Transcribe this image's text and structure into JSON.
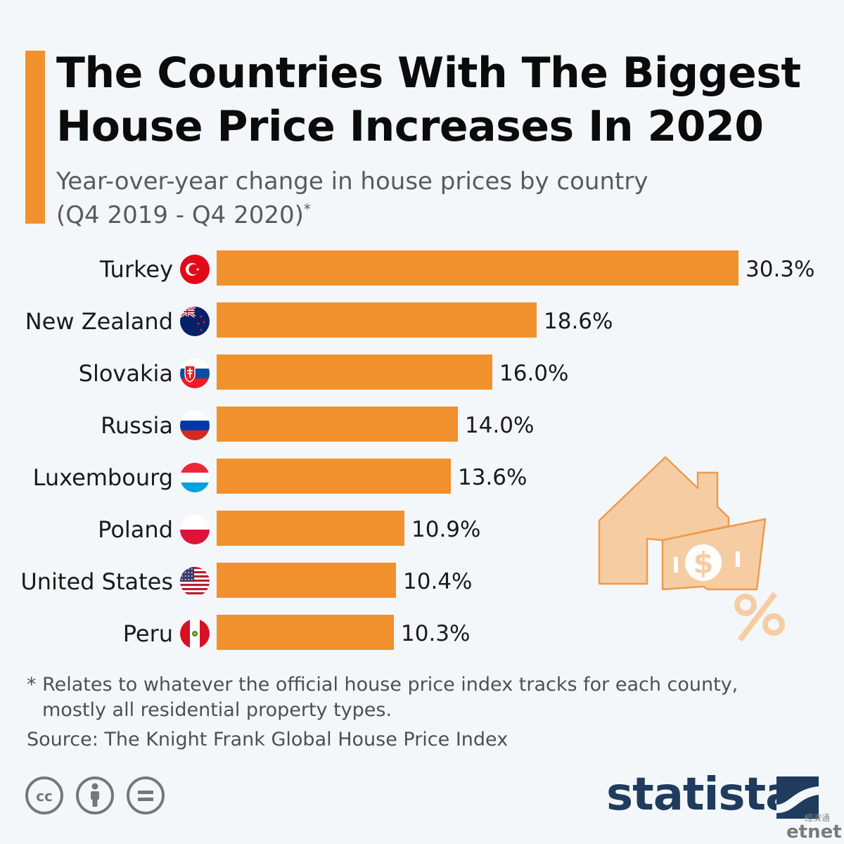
{
  "header": {
    "title_line1": "The Countries With The Biggest",
    "title_line2": "House Price Increases In 2020",
    "subtitle_line1": "Year-over-year change in house prices by country",
    "subtitle_line2": "(Q4 2019 - Q4 2020)",
    "subtitle_marker": "*"
  },
  "chart_data": {
    "type": "bar",
    "orientation": "horizontal",
    "categories": [
      "Turkey",
      "New Zealand",
      "Slovakia",
      "Russia",
      "Luxembourg",
      "Poland",
      "United States",
      "Peru"
    ],
    "values": [
      30.3,
      18.6,
      16.0,
      14.0,
      13.6,
      10.9,
      10.4,
      10.3
    ],
    "value_labels": [
      "30.3%",
      "18.6%",
      "16.0%",
      "14.0%",
      "13.6%",
      "10.9%",
      "10.4%",
      "10.3%"
    ],
    "flags": [
      "turkey-flag-icon",
      "new-zealand-flag-icon",
      "slovakia-flag-icon",
      "russia-flag-icon",
      "luxembourg-flag-icon",
      "poland-flag-icon",
      "united-states-flag-icon",
      "peru-flag-icon"
    ],
    "unit": "%",
    "xlim": [
      0,
      30.3
    ],
    "grid": false,
    "bar_color": "#f0912e"
  },
  "footer": {
    "footnote_line1": "* Relates to whatever the official house price index tracks for each county,",
    "footnote_line2": "mostly all residential property types.",
    "source": "Source: The Knight Frank Global House Price Index",
    "license_icons": [
      "creative-commons-icon",
      "attribution-icon",
      "no-derivatives-icon"
    ],
    "brand": "statista",
    "watermark_cn": "經濟通",
    "watermark_brand_a": "et",
    "watermark_brand_b": "net"
  },
  "colors": {
    "accent": "#f0912e",
    "illustration": "#f6cda3",
    "brand": "#1f3c5e"
  },
  "illustration": "house-with-dollar-and-percent-icon"
}
